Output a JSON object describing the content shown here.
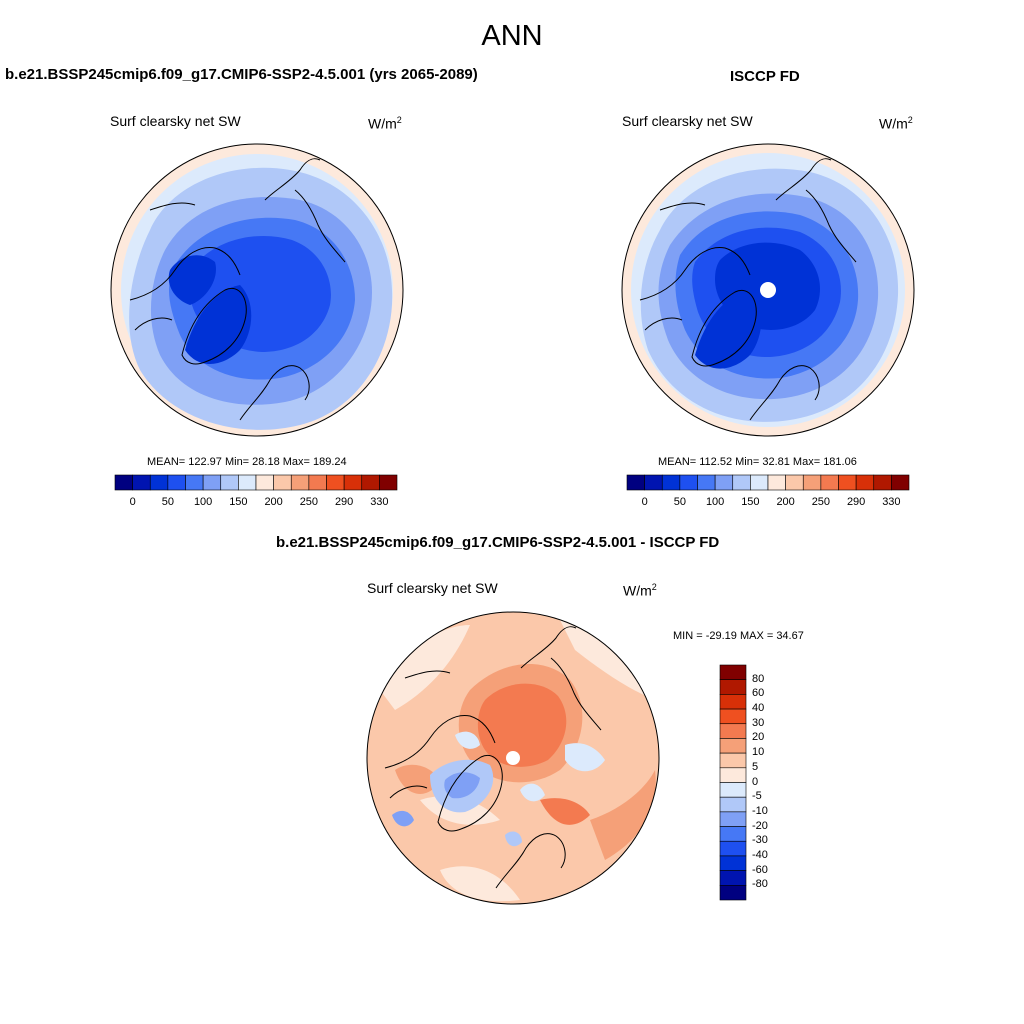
{
  "main_title": "ANN",
  "colors": {
    "abs_levels": [
      "#000080",
      "#0014b0",
      "#0032d6",
      "#1e50f0",
      "#4678f5",
      "#7fa0f5",
      "#b0c8f8",
      "#dceafc",
      "#fde9dc",
      "#fbc8aa",
      "#f5a078",
      "#f37a50",
      "#ef5020",
      "#d83008",
      "#b01800",
      "#800000"
    ],
    "diff_levels": [
      "#000080",
      "#0014b0",
      "#0032d6",
      "#1e50f0",
      "#4678f5",
      "#7fa0f5",
      "#b0c8f8",
      "#dceafc",
      "#fde9dc",
      "#fbc8aa",
      "#f5a078",
      "#f37a50",
      "#ef5020",
      "#d83008",
      "#b01800",
      "#800000"
    ]
  },
  "panels": {
    "model": {
      "case_title": "b.e21.BSSP245cmip6.f09_g17.CMIP6-SSP2-4.5.001 (yrs 2065-2089)",
      "variable": "Surf clearsky net SW",
      "units": "W/m",
      "units_sup": "2",
      "stats": "MEAN= 122.97  Min=  28.18  Max= 189.24",
      "colorbar_ticks": [
        "0",
        "50",
        "100",
        "150",
        "200",
        "250",
        "290",
        "330"
      ]
    },
    "obs": {
      "case_title": "ISCCP FD",
      "variable": "Surf clearsky net SW",
      "units": "W/m",
      "units_sup": "2",
      "stats": "MEAN= 112.52  Min=  32.81  Max= 181.06",
      "colorbar_ticks": [
        "0",
        "50",
        "100",
        "150",
        "200",
        "250",
        "290",
        "330"
      ]
    },
    "diff": {
      "case_title": "b.e21.BSSP245cmip6.f09_g17.CMIP6-SSP2-4.5.001 - ISCCP FD",
      "variable": "Surf clearsky net SW",
      "units": "W/m",
      "units_sup": "2",
      "stats": "MIN = -29.19 MAX =  34.67",
      "colorbar_ticks": [
        "80",
        "60",
        "40",
        "30",
        "20",
        "10",
        "5",
        "0",
        "-5",
        "-10",
        "-20",
        "-30",
        "-40",
        "-60",
        "-80"
      ]
    }
  }
}
